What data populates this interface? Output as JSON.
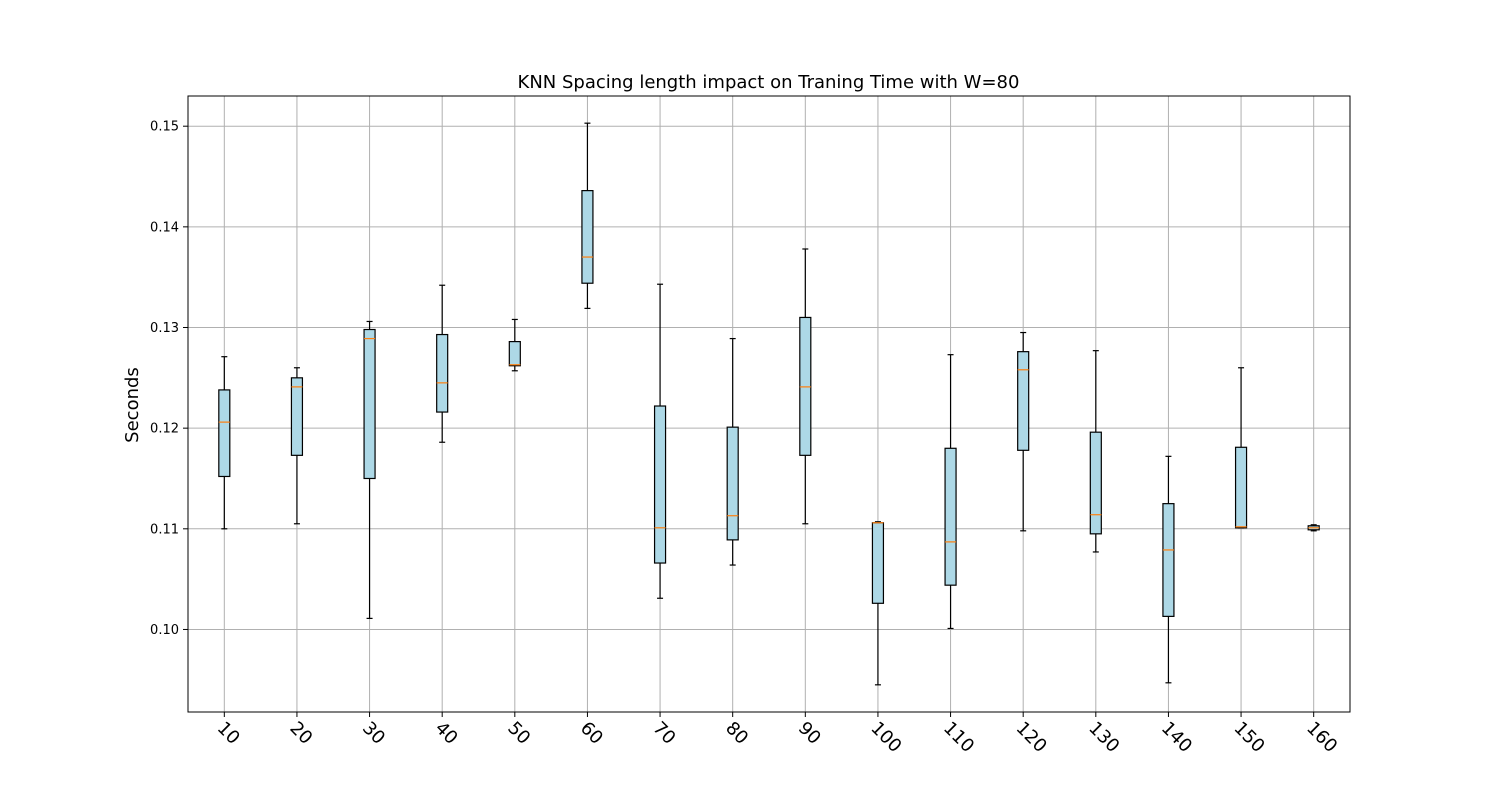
{
  "chart_data": {
    "type": "box",
    "title": "KNN Spacing length impact on Traning Time with W=80",
    "xlabel": "",
    "ylabel": "Seconds",
    "ylim": [
      0.0918,
      0.153
    ],
    "yticks": [
      "0.10",
      "0.11",
      "0.12",
      "0.13",
      "0.14",
      "0.15"
    ],
    "ytick_values": [
      0.1,
      0.11,
      0.12,
      0.13,
      0.14,
      0.15
    ],
    "grid": true,
    "box_color": "#add8e6",
    "median_color": "#ff7f0e",
    "categories": [
      "10",
      "20",
      "30",
      "40",
      "50",
      "60",
      "70",
      "80",
      "90",
      "100",
      "110",
      "120",
      "130",
      "140",
      "150",
      "160"
    ],
    "boxes": [
      {
        "whislo": 0.11,
        "q1": 0.1152,
        "med": 0.1206,
        "q3": 0.1238,
        "whishi": 0.1271
      },
      {
        "whislo": 0.1105,
        "q1": 0.1173,
        "med": 0.1241,
        "q3": 0.125,
        "whishi": 0.126
      },
      {
        "whislo": 0.1011,
        "q1": 0.115,
        "med": 0.1289,
        "q3": 0.1298,
        "whishi": 0.1306
      },
      {
        "whislo": 0.1186,
        "q1": 0.1216,
        "med": 0.1245,
        "q3": 0.1293,
        "whishi": 0.1342
      },
      {
        "whislo": 0.1257,
        "q1": 0.1262,
        "med": 0.1263,
        "q3": 0.1286,
        "whishi": 0.1308
      },
      {
        "whislo": 0.1319,
        "q1": 0.1344,
        "med": 0.137,
        "q3": 0.1436,
        "whishi": 0.1503
      },
      {
        "whislo": 0.1031,
        "q1": 0.1066,
        "med": 0.1101,
        "q3": 0.1222,
        "whishi": 0.1343
      },
      {
        "whislo": 0.1064,
        "q1": 0.1089,
        "med": 0.1113,
        "q3": 0.1201,
        "whishi": 0.1289
      },
      {
        "whislo": 0.1105,
        "q1": 0.1173,
        "med": 0.1241,
        "q3": 0.131,
        "whishi": 0.1378
      },
      {
        "whislo": 0.0945,
        "q1": 0.1026,
        "med": 0.1106,
        "q3": 0.1106,
        "whishi": 0.1107
      },
      {
        "whislo": 0.1001,
        "q1": 0.1044,
        "med": 0.1087,
        "q3": 0.118,
        "whishi": 0.1273
      },
      {
        "whislo": 0.1098,
        "q1": 0.1178,
        "med": 0.1258,
        "q3": 0.1276,
        "whishi": 0.1295
      },
      {
        "whislo": 0.1077,
        "q1": 0.1095,
        "med": 0.1114,
        "q3": 0.1196,
        "whishi": 0.1277
      },
      {
        "whislo": 0.0947,
        "q1": 0.1013,
        "med": 0.1079,
        "q3": 0.1125,
        "whishi": 0.1172
      },
      {
        "whislo": 0.1101,
        "q1": 0.1101,
        "med": 0.1102,
        "q3": 0.1181,
        "whishi": 0.126
      },
      {
        "whislo": 0.1098,
        "q1": 0.1099,
        "med": 0.1101,
        "q3": 0.1103,
        "whishi": 0.1104
      }
    ]
  }
}
